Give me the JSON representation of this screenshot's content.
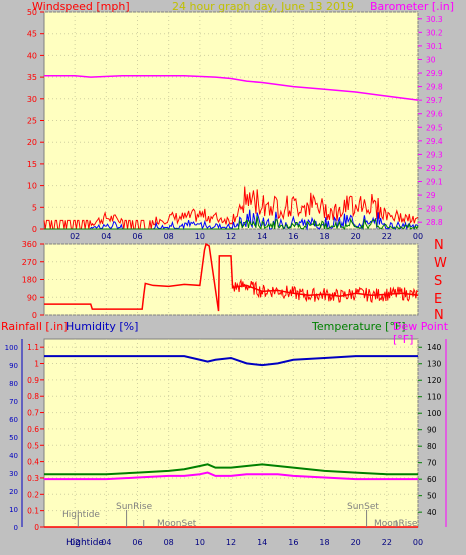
{
  "header": {
    "left_label": "Windspeed [mph]",
    "title": "24 hour graph day,  June 13 2019",
    "right_label": "Barometer [.in]"
  },
  "colors": {
    "plot_bg": "#ffffc0",
    "frame": "#c0c0c0",
    "wind": "#ff0000",
    "gust": "#0000ff",
    "avg": "#008000",
    "baro": "#ff00ff",
    "temp": "#008000",
    "dew": "#ff00ff",
    "humidity": "#0000c0",
    "rain": "#ff0000",
    "title": "#c0c000",
    "dark_label": "#808000",
    "grid": "#d0d0a0"
  },
  "panel3_labels": {
    "rain": "Rainfall [.in]",
    "humidity": "Humidity [%]",
    "temp": "Temperature [°F]",
    "dew": "Dew Point [°F]"
  },
  "compass": [
    "N",
    "W",
    "S",
    "E",
    "N"
  ],
  "events": {
    "hightide_1": "Hightide",
    "sunrise": "SunRise",
    "moonset": "MoonSet",
    "sunset": "SunSet",
    "moonrise": "MoonRise",
    "hightide_2": "Hightide"
  },
  "chart_data": [
    {
      "type": "line",
      "x_ticks": [
        "02",
        "04",
        "06",
        "08",
        "10",
        "12",
        "14",
        "16",
        "18",
        "20",
        "22",
        "00"
      ],
      "left_axis": {
        "ticks": [
          "0",
          "5",
          "10",
          "15",
          "20",
          "25",
          "30",
          "35",
          "40",
          "45",
          "50"
        ],
        "ylim": [
          0,
          50
        ]
      },
      "right_axis": {
        "ticks": [
          "28.8",
          "28.9",
          "29",
          "29.1",
          "29.2",
          "29.3",
          "29.4",
          "29.5",
          "29.6",
          "29.7",
          "29.8",
          "29.9",
          "30",
          "30.1",
          "30.2",
          "30.3"
        ],
        "ylim": [
          28.75,
          30.35
        ]
      },
      "series": [
        {
          "role": "barometer",
          "axis": "right",
          "x": [
            0,
            2,
            3,
            5,
            7,
            9,
            11,
            12,
            13,
            14,
            16,
            18,
            20,
            22,
            24
          ],
          "y": [
            29.88,
            29.88,
            29.87,
            29.88,
            29.88,
            29.88,
            29.87,
            29.86,
            29.84,
            29.83,
            29.8,
            29.78,
            29.76,
            29.73,
            29.7
          ]
        },
        {
          "role": "wind_gust_envelope",
          "axis": "left",
          "x": [
            0,
            1,
            2,
            3,
            4,
            5,
            6,
            7,
            8,
            9,
            10,
            11,
            12,
            12.5,
            13,
            14,
            15,
            16,
            17,
            18,
            19,
            20,
            21,
            22,
            23,
            24
          ],
          "y": [
            2,
            2,
            2,
            2,
            4,
            3,
            2,
            3,
            4,
            4,
            5,
            4,
            3,
            7,
            11,
            9,
            8,
            8,
            9,
            7,
            6,
            10,
            9,
            5,
            4,
            3
          ]
        }
      ]
    },
    {
      "type": "line",
      "x_ticks": [],
      "left_axis": {
        "ticks": [
          "0",
          "90",
          "180",
          "270",
          "360"
        ],
        "ylim": [
          0,
          360
        ]
      },
      "series": [
        {
          "role": "wind_direction",
          "x": [
            0,
            3,
            3.1,
            6.3,
            6.4,
            6.5,
            7,
            8,
            9,
            10,
            10.3,
            10.4,
            10.6,
            11.2,
            11.25,
            12,
            12.1,
            13,
            14,
            15,
            16,
            17,
            18,
            19,
            20,
            21,
            22,
            23,
            24
          ],
          "y": [
            55,
            55,
            30,
            30,
            100,
            160,
            150,
            145,
            155,
            150,
            330,
            360,
            350,
            20,
            300,
            300,
            140,
            150,
            120,
            125,
            110,
            100,
            105,
            95,
            110,
            100,
            105,
            110,
            100
          ]
        }
      ]
    },
    {
      "type": "line",
      "x_ticks": [
        "02",
        "04",
        "06",
        "08",
        "10",
        "12",
        "14",
        "16",
        "18",
        "20",
        "22",
        "00"
      ],
      "left_axis": {
        "ticks": [
          "0",
          "0.1",
          "0.2",
          "0.3",
          "0.4",
          "0.5",
          "0.6",
          "0.7",
          "0.8",
          "0.9",
          "1",
          "1.1"
        ],
        "ylim": [
          0,
          1.15
        ]
      },
      "humidity_axis": {
        "ticks": [
          "0",
          "10",
          "20",
          "30",
          "40",
          "50",
          "60",
          "70",
          "80",
          "90",
          "100"
        ],
        "ylim": [
          0,
          100
        ]
      },
      "right_axis": {
        "ticks": [
          "40",
          "50",
          "60",
          "70",
          "80",
          "90",
          "100",
          "110",
          "120",
          "130",
          "140"
        ],
        "ylim": [
          31,
          145
        ]
      },
      "series": [
        {
          "role": "humidity",
          "axis": "humidity",
          "x": [
            0,
            4,
            8,
            9,
            10,
            10.5,
            11,
            12,
            13,
            14,
            15,
            16,
            18,
            20,
            22,
            24
          ],
          "y": [
            95,
            95,
            95,
            95,
            93,
            92,
            93,
            94,
            91,
            90,
            91,
            93,
            94,
            95,
            95,
            95
          ]
        },
        {
          "role": "temperature",
          "axis": "right",
          "x": [
            0,
            4,
            6,
            8,
            9,
            10,
            10.5,
            11,
            12,
            13,
            14,
            15,
            16,
            18,
            20,
            22,
            24
          ],
          "y": [
            63,
            63,
            64,
            65,
            66,
            68,
            69,
            67,
            67,
            68,
            69,
            68,
            67,
            65,
            64,
            63,
            63
          ]
        },
        {
          "role": "dew_point",
          "axis": "right",
          "x": [
            0,
            4,
            6,
            8,
            9,
            10,
            10.5,
            11,
            12,
            13,
            14,
            15,
            16,
            18,
            20,
            22,
            24
          ],
          "y": [
            60,
            60,
            61,
            62,
            62,
            63,
            64,
            62,
            62,
            63,
            63,
            63,
            62,
            61,
            60,
            60,
            60
          ]
        },
        {
          "role": "rainfall",
          "axis": "left",
          "x": [
            0,
            24
          ],
          "y": [
            0,
            0
          ]
        }
      ]
    }
  ]
}
